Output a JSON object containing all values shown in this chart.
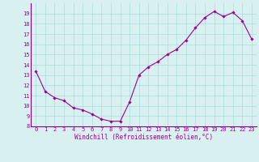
{
  "x": [
    0,
    1,
    2,
    3,
    4,
    5,
    6,
    7,
    8,
    9,
    10,
    11,
    12,
    13,
    14,
    15,
    16,
    17,
    18,
    19,
    20,
    21,
    22,
    23
  ],
  "y": [
    13.4,
    11.4,
    10.8,
    10.5,
    9.8,
    9.6,
    9.2,
    8.7,
    8.5,
    8.5,
    10.4,
    13.0,
    13.8,
    14.3,
    15.0,
    15.5,
    16.4,
    17.6,
    18.6,
    19.2,
    18.7,
    19.1,
    18.3,
    16.5
  ],
  "line_color": "#990099",
  "marker": "D",
  "marker_size": 1.8,
  "bg_color": "#d8f0f0",
  "grid_color": "#aadddd",
  "axis_color": "#880088",
  "xlabel": "Windchill (Refroidissement éolien,°C)",
  "ylabel": "",
  "xlim": [
    -0.5,
    23.5
  ],
  "ylim": [
    8,
    20
  ],
  "yticks": [
    8,
    9,
    10,
    11,
    12,
    13,
    14,
    15,
    16,
    17,
    18,
    19
  ],
  "xticks": [
    0,
    1,
    2,
    3,
    4,
    5,
    6,
    7,
    8,
    9,
    10,
    11,
    12,
    13,
    14,
    15,
    16,
    17,
    18,
    19,
    20,
    21,
    22,
    23
  ],
  "xlabel_fontsize": 5.5,
  "tick_fontsize": 5.0,
  "xlabel_color": "#990099",
  "tick_color": "#990099"
}
